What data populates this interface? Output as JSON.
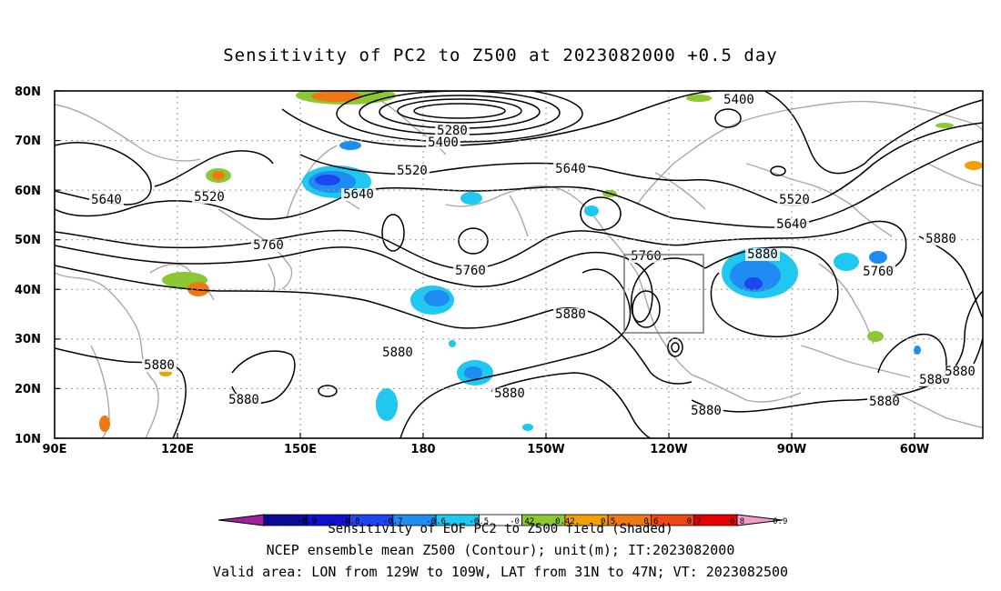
{
  "title": "Sensitivity of PC2 to Z500 at 2023082000 +0.5 day",
  "map": {
    "lat_labels": [
      "80N",
      "70N",
      "60N",
      "50N",
      "40N",
      "30N",
      "20N",
      "10N"
    ],
    "lon_labels": [
      "90E",
      "120E",
      "150E",
      "180",
      "150W",
      "120W",
      "90W",
      "60W"
    ],
    "contour_units": "m",
    "contour_labels": [
      "5280",
      "5400",
      "5400",
      "5520",
      "5520",
      "5520",
      "5640",
      "5640",
      "5640",
      "5640",
      "5760",
      "5760",
      "5760",
      "5760",
      "5880",
      "5880",
      "5880",
      "5880",
      "5880",
      "5880",
      "5880",
      "5880",
      "5880",
      "5880",
      "5880"
    ],
    "valid_area_box": {
      "lon_range": [
        "129W",
        "109W"
      ],
      "lat_range": [
        "31N",
        "47N"
      ]
    }
  },
  "colorbar": {
    "tick_labels": [
      "-0.9",
      "-0.8",
      "-0.7",
      "-0.6",
      "-0.5",
      "-0.42",
      "0.42",
      "0.5",
      "0.6",
      "0.7",
      "0.8",
      "0.9"
    ],
    "colors": [
      "#a020a0",
      "#0a0a96",
      "#1010d2",
      "#1e46f0",
      "#1e8cf0",
      "#1ec8f0",
      "#ffffff",
      "#8cc832",
      "#f0a000",
      "#f07814",
      "#f04614",
      "#e60000",
      "#f0a0c8"
    ],
    "title": "Sensitivity of EOF PC2 to Z500 field (Shaded)"
  },
  "caption_line1": "NCEP ensemble mean Z500 (Contour); unit(m); IT:2023082000",
  "caption_line2": "Valid area: LON from 129W to 109W, LAT from 31N to 47N; VT: 2023082500"
}
